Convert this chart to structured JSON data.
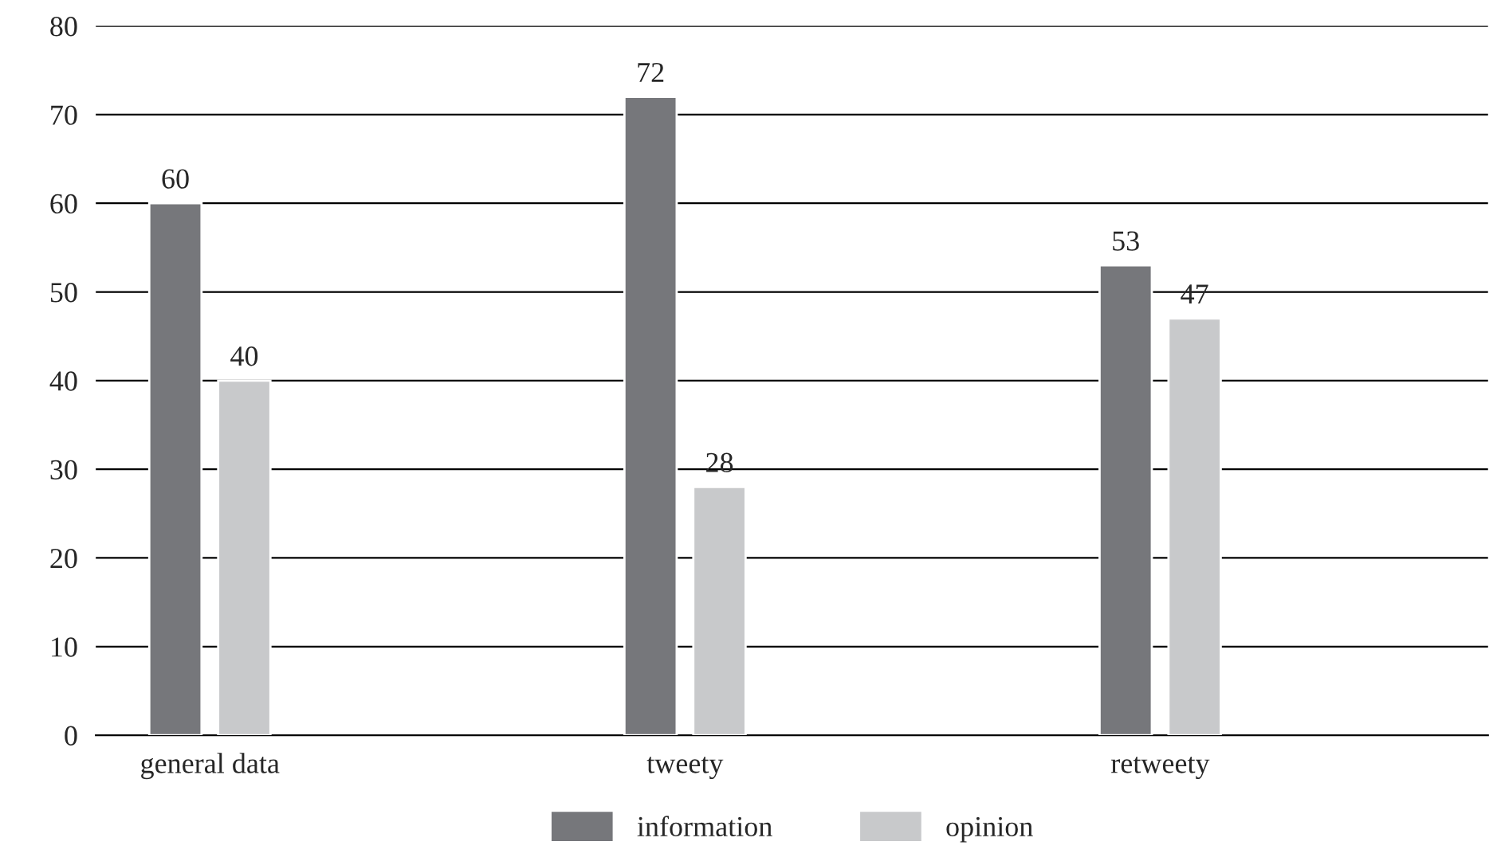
{
  "chart_data": {
    "type": "bar",
    "categories": [
      "general data",
      "tweety",
      "retweety"
    ],
    "series": [
      {
        "name": "information",
        "color": "#76777b",
        "values": [
          60,
          72,
          53
        ]
      },
      {
        "name": "opinion",
        "color": "#c8c9cb",
        "values": [
          40,
          28,
          47
        ]
      }
    ],
    "ylim": [
      0,
      80
    ],
    "yticks": [
      0,
      10,
      20,
      30,
      40,
      50,
      60,
      70,
      80
    ],
    "grid": "y",
    "legend": "bottom",
    "data_labels": true
  }
}
